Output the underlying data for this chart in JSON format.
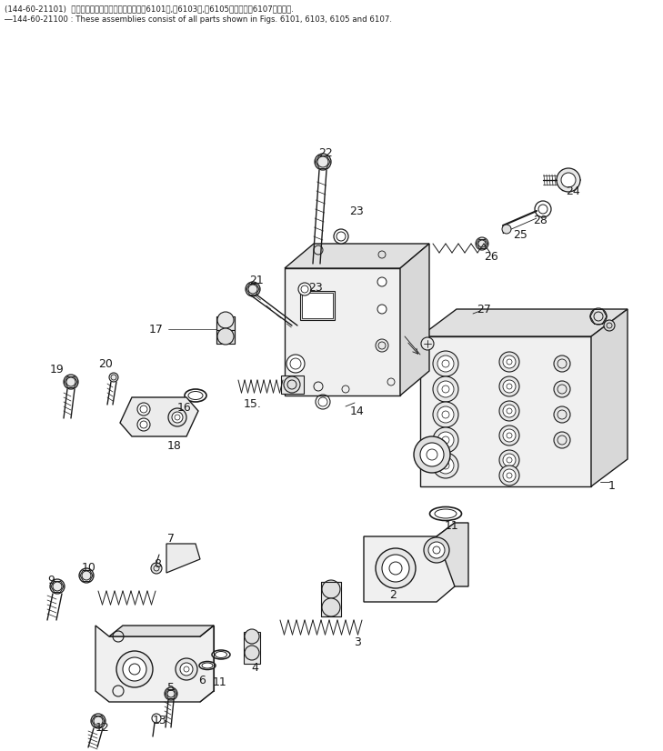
{
  "bg_color": "#ffffff",
  "line_color": "#1a1a1a",
  "header_line1": "(144-60-21101)  これらのアセンブリの構成部品は第6101図,第6103図,第6105図および第6107図を見よ.",
  "header_line2": "―144-60-21100 : These assemblies consist of all parts shown in Figs. 6101, 6103, 6105 and 6107.",
  "figsize": [
    7.29,
    8.26
  ],
  "dpi": 100
}
